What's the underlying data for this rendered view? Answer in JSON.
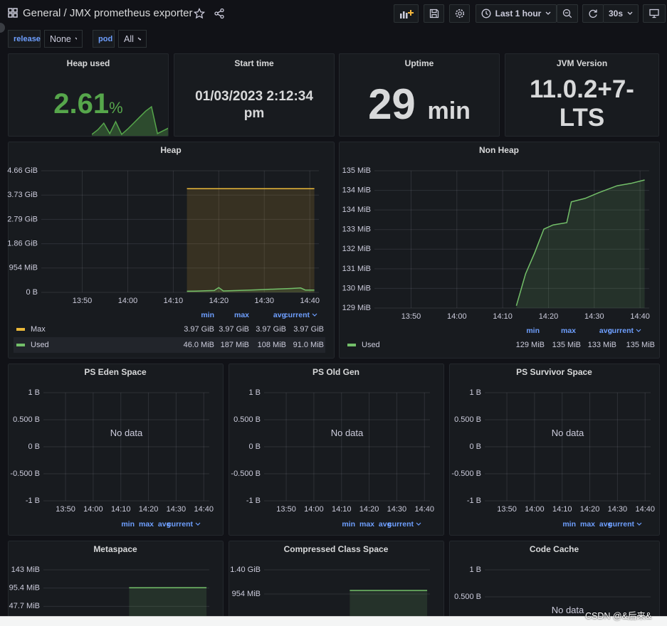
{
  "header": {
    "folder": "General",
    "separator": "/",
    "title": "JMX prometheus exporter",
    "time_range": "Last 1 hour",
    "refresh_interval": "30s"
  },
  "variables": [
    {
      "label": "release",
      "value": "None"
    },
    {
      "label": "pod",
      "value": "All"
    }
  ],
  "stats": [
    {
      "title": "Heap used",
      "value": 2.61,
      "unit": "%",
      "color": "#56a64b",
      "sparkline": [
        0.3,
        0.9,
        1.8,
        0.4,
        2.0,
        0.3,
        1.0,
        1.8,
        2.6,
        3.4,
        4.0,
        0.4,
        0.8,
        1.2
      ]
    },
    {
      "title": "Start time",
      "value": "01/03/2023 2:12:34 pm"
    },
    {
      "title": "Uptime",
      "value": 29,
      "unit": "min"
    },
    {
      "title": "JVM Version",
      "value": "11.0.2+7-LTS"
    }
  ],
  "chart_data": [
    {
      "type": "line",
      "title": "Heap",
      "xlim": [
        "13:41",
        "14:42"
      ],
      "xticks": [
        "13:50",
        "14:00",
        "14:10",
        "14:20",
        "14:30",
        "14:40"
      ],
      "ylim": [
        0,
        4.6582
      ],
      "yticks": [
        {
          "value": 0,
          "label": "0 B"
        },
        {
          "value": 0.9316,
          "label": "954 MiB"
        },
        {
          "value": 1.8633,
          "label": "1.86 GiB"
        },
        {
          "value": 2.7949,
          "label": "2.79 GiB"
        },
        {
          "value": 3.7266,
          "label": "3.73 GiB"
        },
        {
          "value": 4.6582,
          "label": "4.66 GiB"
        }
      ],
      "grid": true,
      "x": [
        "14:13",
        "14:15",
        "14:17",
        "14:19",
        "14:20",
        "14:21",
        "14:24",
        "14:27",
        "14:30",
        "14:33",
        "14:36",
        "14:38",
        "14:39",
        "14:41"
      ],
      "series": [
        {
          "name": "Max",
          "color": "#eab839",
          "values": [
            3.97,
            3.97,
            3.97,
            3.97,
            3.97,
            3.97,
            3.97,
            3.97,
            3.97,
            3.97,
            3.97,
            3.97,
            3.97,
            3.97
          ],
          "legend_values": [
            "3.97 GiB",
            "3.97 GiB",
            "3.97 GiB",
            "3.97 GiB"
          ]
        },
        {
          "name": "Used",
          "color": "#73bf69",
          "values": [
            0.0449,
            0.05,
            0.06,
            0.07,
            0.1826,
            0.055,
            0.07,
            0.09,
            0.11,
            0.13,
            0.15,
            0.17,
            0.09,
            0.0889
          ],
          "legend_values": [
            "46.0 MiB",
            "187 MiB",
            "108 MiB",
            "91.0 MiB"
          ]
        }
      ],
      "legend_columns": [
        "min",
        "max",
        "avg",
        "current"
      ]
    },
    {
      "type": "line",
      "title": "Non Heap",
      "xlim": [
        "13:42",
        "14:42"
      ],
      "xticks": [
        "13:50",
        "14:00",
        "14:10",
        "14:20",
        "14:30",
        "14:40"
      ],
      "ylim": [
        129.3,
        135.25
      ],
      "yticks": [
        {
          "value": 129.3,
          "label": "129 MiB"
        },
        {
          "value": 130.15,
          "label": "130 MiB"
        },
        {
          "value": 131.0,
          "label": "131 MiB"
        },
        {
          "value": 131.85,
          "label": "132 MiB"
        },
        {
          "value": 132.7,
          "label": "133 MiB"
        },
        {
          "value": 133.55,
          "label": "134 MiB"
        },
        {
          "value": 134.4,
          "label": "134 MiB"
        },
        {
          "value": 135.25,
          "label": "135 MiB"
        }
      ],
      "grid": true,
      "x": [
        "14:13",
        "14:15",
        "14:17",
        "14:19",
        "14:21",
        "14:24",
        "14:25",
        "14:28",
        "14:31",
        "14:35",
        "14:38",
        "14:41"
      ],
      "series": [
        {
          "name": "Used",
          "color": "#73bf69",
          "values": [
            129.4,
            130.78,
            131.7,
            132.72,
            132.9,
            133.0,
            133.9,
            134.05,
            134.3,
            134.6,
            134.7,
            134.85
          ],
          "legend_values": [
            "129 MiB",
            "135 MiB",
            "133 MiB",
            "135 MiB"
          ]
        }
      ],
      "legend_columns": [
        "min",
        "max",
        "avg",
        "current"
      ]
    },
    {
      "type": "line",
      "title": "PS Eden Space",
      "xlim": [
        "13:42",
        "14:42"
      ],
      "xticks": [
        "13:50",
        "14:00",
        "14:10",
        "14:20",
        "14:30",
        "14:40"
      ],
      "ylim": [
        -1,
        1
      ],
      "yticks": [
        {
          "value": -1,
          "label": "-1 B"
        },
        {
          "value": -0.5,
          "label": "-0.500 B"
        },
        {
          "value": 0,
          "label": "0 B"
        },
        {
          "value": 0.5,
          "label": "0.500 B"
        },
        {
          "value": 1,
          "label": "1 B"
        }
      ],
      "grid": true,
      "series": [],
      "no_data": "No data",
      "legend_columns": [
        "min",
        "max",
        "avg",
        "current"
      ]
    },
    {
      "type": "line",
      "title": "PS Old Gen",
      "xlim": [
        "13:42",
        "14:42"
      ],
      "xticks": [
        "13:50",
        "14:00",
        "14:10",
        "14:20",
        "14:30",
        "14:40"
      ],
      "ylim": [
        -1,
        1
      ],
      "yticks": [
        {
          "value": -1,
          "label": "-1 B"
        },
        {
          "value": -0.5,
          "label": "-0.500 B"
        },
        {
          "value": 0,
          "label": "0 B"
        },
        {
          "value": 0.5,
          "label": "0.500 B"
        },
        {
          "value": 1,
          "label": "1 B"
        }
      ],
      "grid": true,
      "series": [],
      "no_data": "No data",
      "legend_columns": [
        "min",
        "max",
        "avg",
        "current"
      ]
    },
    {
      "type": "line",
      "title": "PS Survivor Space",
      "xlim": [
        "13:42",
        "14:42"
      ],
      "xticks": [
        "13:50",
        "14:00",
        "14:10",
        "14:20",
        "14:30",
        "14:40"
      ],
      "ylim": [
        -1,
        1
      ],
      "yticks": [
        {
          "value": -1,
          "label": "-1 B"
        },
        {
          "value": -0.5,
          "label": "-0.500 B"
        },
        {
          "value": 0,
          "label": "0 B"
        },
        {
          "value": 0.5,
          "label": "0.500 B"
        },
        {
          "value": 1,
          "label": "1 B"
        }
      ],
      "grid": true,
      "series": [],
      "no_data": "No data",
      "legend_columns": [
        "min",
        "max",
        "avg",
        "current"
      ]
    },
    {
      "type": "line",
      "title": "Metaspace",
      "xlim": [
        "13:42",
        "14:42"
      ],
      "ylim": [
        0,
        143.1
      ],
      "yticks": [
        {
          "value": 47.7,
          "label": "47.7 MiB"
        },
        {
          "value": 95.4,
          "label": "95.4 MiB"
        },
        {
          "value": 143.1,
          "label": "143 MiB"
        }
      ],
      "grid": true,
      "x": [
        "14:13",
        "14:41"
      ],
      "series": [
        {
          "color": "#73bf69",
          "values": [
            96,
            96.5
          ]
        }
      ]
    },
    {
      "type": "line",
      "title": "Compressed Class Space",
      "xlim": [
        "13:42",
        "14:42"
      ],
      "ylim": [
        0,
        1.3975
      ],
      "yticks": [
        {
          "value": 0.9316,
          "label": "954 MiB"
        },
        {
          "value": 1.3975,
          "label": "1.40 GiB"
        }
      ],
      "grid": true,
      "x": [
        "14:13",
        "14:41"
      ],
      "series": [
        {
          "color": "#73bf69",
          "values": [
            1.0,
            1.0
          ]
        }
      ]
    },
    {
      "type": "line",
      "title": "Code Cache",
      "xlim": [
        "13:42",
        "14:42"
      ],
      "ylim": [
        -1,
        1
      ],
      "yticks": [
        {
          "value": 0.5,
          "label": "0.500 B"
        },
        {
          "value": 1,
          "label": "1 B"
        }
      ],
      "grid": true,
      "series": [],
      "no_data": "No data"
    }
  ],
  "watermark": "CSDN @&后来&"
}
